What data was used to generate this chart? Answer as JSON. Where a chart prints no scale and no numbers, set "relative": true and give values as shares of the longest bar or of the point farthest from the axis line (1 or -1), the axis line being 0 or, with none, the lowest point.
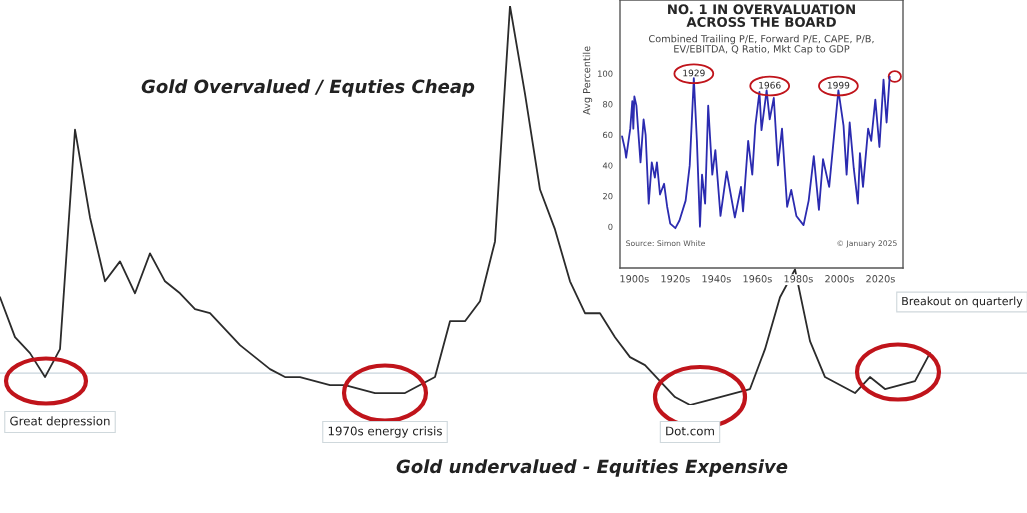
{
  "chart_data": [
    {
      "type": "line",
      "relative": true,
      "categories": [
        null,
        null,
        null,
        null,
        null,
        null,
        null,
        null,
        null,
        null,
        null,
        null,
        null,
        null,
        null,
        null,
        null,
        null,
        null,
        null,
        null,
        null,
        null,
        null,
        null,
        null,
        null,
        null,
        null,
        null,
        null,
        null,
        null,
        null,
        null,
        null,
        null,
        null,
        null,
        null,
        null,
        null,
        null,
        null,
        null,
        null,
        null,
        null,
        null,
        null,
        null,
        null,
        null,
        null,
        null,
        null,
        null,
        null,
        null,
        null,
        null,
        null,
        null
      ],
      "series": [
        {
          "color": "#2b2b2b",
          "values": [
            0.27,
            0.17,
            0.13,
            0.07,
            0.14,
            0.69,
            0.47,
            0.31,
            0.36,
            0.28,
            0.38,
            0.31,
            0.28,
            0.24,
            0.23,
            0.19,
            0.15,
            0.12,
            0.09,
            0.07,
            0.07,
            0.06,
            0.05,
            0.05,
            0.04,
            0.03,
            0.03,
            0.03,
            0.05,
            0.07,
            0.21,
            0.21,
            0.26,
            0.41,
            1,
            0.78,
            0.54,
            0.44,
            0.31,
            0.23,
            0.23,
            0.17,
            0.12,
            0.1,
            0.06,
            0.02,
            0,
            0.01,
            0.02,
            0.03,
            0.04,
            0.14,
            0.27,
            0.34,
            0.16,
            0.07,
            0.05,
            0.03,
            0.07,
            0.04,
            0.05,
            0.06,
            0.13
          ]
        }
      ],
      "ref_lines": [
        {
          "axis": "y",
          "value": 0.08,
          "color": "#c8d4dc"
        }
      ],
      "annotations": [
        "Gold Overvalued / Equties Cheap",
        "Gold undervalued - Equities Expensive",
        "Great depression",
        "1970s energy crisis",
        "Dot.com",
        "Breakout on quarterly"
      ]
    },
    {
      "type": "line",
      "title": "NO. 1 IN OVERVALUATION\nACROSS THE BOARD",
      "subtitle": "Combined Trailing P/E, Forward P/E, CAPE, P/B,\nEV/EBITDA, Q Ratio, Mkt Cap to GDP",
      "ylabel": "Avg Percentile",
      "x": [
        1894,
        1895.5,
        1896,
        1898,
        1899,
        1899.5,
        1900,
        1901,
        1903,
        1904.5,
        1905.5,
        1907,
        1908.5,
        1910,
        1911,
        1912.5,
        1914.5,
        1916,
        1917.5,
        1920,
        1922,
        1925,
        1927,
        1929,
        1930.5,
        1932,
        1933,
        1934.5,
        1936,
        1938,
        1939.5,
        1942,
        1945,
        1949,
        1952,
        1953,
        1955.5,
        1957.5,
        1959,
        1961,
        1962,
        1964.5,
        1966,
        1968,
        1970,
        1972,
        1974.5,
        1976.5,
        1979,
        1982.5,
        1985,
        1987.5,
        1990,
        1992,
        1995,
        1999.5,
        2002,
        2003.5,
        2005,
        2007,
        2009,
        2010,
        2011.5,
        2014,
        2015.5,
        2017.5,
        2019.5,
        2021.5,
        2023,
        2024.5
      ],
      "series": [
        {
          "color": "#2b2bb0",
          "values": [
            59,
            50,
            45,
            64,
            82,
            64,
            85,
            79,
            42,
            70,
            60,
            15,
            42,
            32,
            42,
            21,
            28,
            13,
            2,
            -1,
            4,
            17,
            40,
            97,
            56,
            0,
            34,
            15,
            79,
            34,
            50,
            7,
            36,
            6,
            26,
            10,
            56,
            34,
            66,
            88,
            63,
            89,
            70,
            84,
            40,
            64,
            13,
            24,
            7,
            1,
            17,
            46,
            11,
            44,
            26,
            89,
            66,
            34,
            68,
            38,
            15,
            48,
            26,
            64,
            56,
            83,
            52,
            96,
            68,
            98
          ]
        }
      ],
      "xlim": [
        1893,
        2031
      ],
      "xticks": [
        {
          "value": 1900,
          "label": "1900s"
        },
        {
          "value": 1920,
          "label": "1920s"
        },
        {
          "value": 1940,
          "label": "1940s"
        },
        {
          "value": 1960,
          "label": "1960s"
        },
        {
          "value": 1980,
          "label": "1980s"
        },
        {
          "value": 2000,
          "label": "2000s"
        },
        {
          "value": 2020,
          "label": "2020s"
        }
      ],
      "ylim": [
        -27,
        148
      ],
      "yticks": [
        0,
        20,
        40,
        60,
        80,
        100
      ],
      "annotations": [
        {
          "text": "1929",
          "x": 1929,
          "y": 97
        },
        {
          "text": "1966",
          "x": 1966,
          "y": 89
        },
        {
          "text": "1999",
          "x": 1999.5,
          "y": 89
        },
        "Source: Simon White",
        "© January 2025"
      ]
    }
  ]
}
